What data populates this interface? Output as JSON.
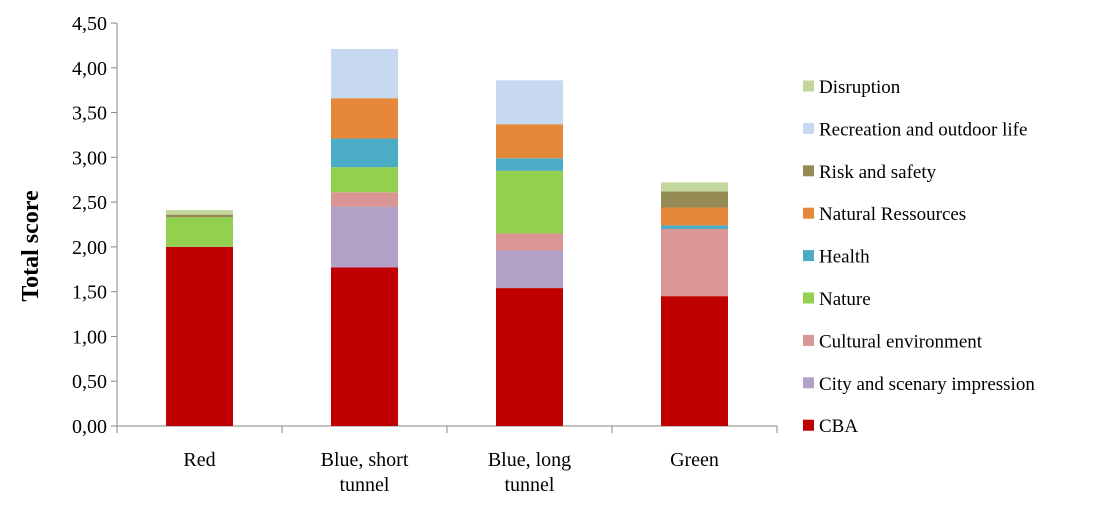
{
  "chart_data": {
    "type": "bar",
    "stacked": true,
    "title": "",
    "xlabel": "",
    "ylabel": "Total score",
    "ylim": [
      0,
      4.5
    ],
    "yticks": [
      "0,00",
      "0,50",
      "1,00",
      "1,50",
      "2,00",
      "2,50",
      "3,00",
      "3,50",
      "4,00",
      "4,50"
    ],
    "grid": false,
    "legend_position": "right",
    "categories": [
      "Red",
      "Blue, short tunnel",
      "Blue, long tunnel",
      "Green"
    ],
    "category_lines": [
      [
        "Red"
      ],
      [
        "Blue, short",
        "tunnel"
      ],
      [
        "Blue, long",
        "tunnel"
      ],
      [
        "Green"
      ]
    ],
    "series": [
      {
        "name": "CBA",
        "color": "#c00000",
        "values": [
          2.0,
          1.77,
          1.54,
          1.45
        ]
      },
      {
        "name": "City and scenary impression",
        "color": "#b3a2c7",
        "values": [
          0.0,
          0.68,
          0.42,
          0.0
        ]
      },
      {
        "name": "Cultural environment",
        "color": "#d99694",
        "values": [
          0.0,
          0.16,
          0.19,
          0.75
        ]
      },
      {
        "name": "Nature",
        "color": "#92d050",
        "values": [
          0.33,
          0.28,
          0.7,
          0.0
        ]
      },
      {
        "name": "Health",
        "color": "#4bacc6",
        "values": [
          0.0,
          0.32,
          0.14,
          0.04
        ]
      },
      {
        "name": "Natural Ressources",
        "color": "#e6883a",
        "values": [
          0.0,
          0.45,
          0.38,
          0.2
        ]
      },
      {
        "name": "Risk and safety",
        "color": "#948a54",
        "values": [
          0.03,
          0.0,
          0.0,
          0.18
        ]
      },
      {
        "name": "Recreation and outdoor life",
        "color": "#c6d9f1",
        "values": [
          0.0,
          0.55,
          0.49,
          0.0
        ]
      },
      {
        "name": "Disruption",
        "color": "#c3d69b",
        "values": [
          0.05,
          0.0,
          0.0,
          0.1
        ]
      }
    ]
  }
}
